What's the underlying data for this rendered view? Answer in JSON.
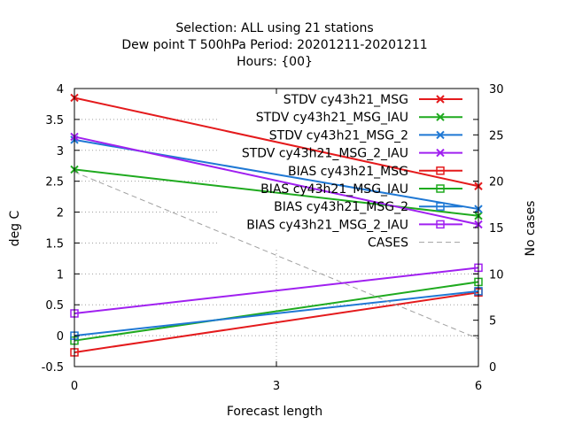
{
  "chart_data": {
    "type": "line",
    "title_lines": [
      "Selection: ALL using    21 stations",
      "Dew point T 500hPa   Period: 20201211-20201211",
      "Hours: {00}"
    ],
    "xlabel": "Forecast length",
    "ylabel": "deg C",
    "y2label": "No cases",
    "x": [
      0,
      6
    ],
    "xticks": [
      0,
      3,
      6
    ],
    "xlim": [
      0,
      6
    ],
    "ylim": [
      -0.5,
      4
    ],
    "yticks": [
      -0.5,
      0,
      0.5,
      1,
      1.5,
      2,
      2.5,
      3,
      3.5,
      4
    ],
    "y2lim": [
      0,
      30
    ],
    "y2ticks": [
      0,
      5,
      10,
      15,
      20,
      25,
      30
    ],
    "grid": true,
    "legend_position": "top-right",
    "series": [
      {
        "name": "STDV cy43h21_MSG",
        "values": [
          3.85,
          2.42
        ],
        "color": "#e41a1c",
        "marker": "x",
        "axis": "y1"
      },
      {
        "name": "STDV cy43h21_MSG_IAU",
        "values": [
          2.69,
          1.94
        ],
        "color": "#1faa1f",
        "marker": "x",
        "axis": "y1"
      },
      {
        "name": "STDV cy43h21_MSG_2",
        "values": [
          3.17,
          2.05
        ],
        "color": "#1f78d4",
        "marker": "x",
        "axis": "y1"
      },
      {
        "name": "STDV cy43h21_MSG_2_IAU",
        "values": [
          3.22,
          1.8
        ],
        "color": "#a020f0",
        "marker": "x",
        "axis": "y1"
      },
      {
        "name": "BIAS cy43h21_MSG",
        "values": [
          -0.27,
          0.7
        ],
        "color": "#e41a1c",
        "marker": "square",
        "axis": "y1"
      },
      {
        "name": "BIAS cy43h21_MSG_IAU",
        "values": [
          -0.08,
          0.87
        ],
        "color": "#1faa1f",
        "marker": "square",
        "axis": "y1"
      },
      {
        "name": "BIAS cy43h21_MSG_2",
        "values": [
          0.0,
          0.72
        ],
        "color": "#1f78d4",
        "marker": "square",
        "axis": "y1"
      },
      {
        "name": "BIAS cy43h21_MSG_2_IAU",
        "values": [
          0.36,
          1.1
        ],
        "color": "#a020f0",
        "marker": "square",
        "axis": "y1"
      },
      {
        "name": "CASES",
        "values": [
          21,
          3
        ],
        "color": "#a0a0a0",
        "marker": "none",
        "dashed": true,
        "axis": "y2"
      }
    ]
  }
}
